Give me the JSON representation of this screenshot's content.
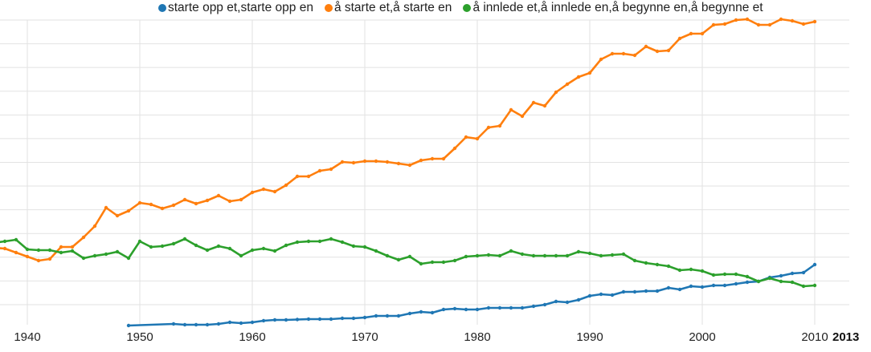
{
  "chart_data": {
    "type": "line",
    "title": "",
    "xlabel": "",
    "ylabel": "",
    "xlim": [
      1937.6,
      2012.5
    ],
    "ylim": [
      0,
      38.5
    ],
    "y_units": "relative frequency (unlabelled axis)",
    "grid": true,
    "legend_position": "top",
    "x_ticks": [
      "1940",
      "1950",
      "1960",
      "1970",
      "1980",
      "1990",
      "2000",
      "2010"
    ],
    "end_label": "2013",
    "series": [
      {
        "name": "starte opp et,starte opp en",
        "color": "#1f77b4",
        "x": [
          1949,
          1953,
          1954,
          1955,
          1956,
          1957,
          1958,
          1959,
          1960,
          1961,
          1962,
          1963,
          1964,
          1965,
          1966,
          1967,
          1968,
          1969,
          1970,
          1971,
          1972,
          1973,
          1974,
          1975,
          1976,
          1977,
          1978,
          1979,
          1980,
          1981,
          1982,
          1983,
          1984,
          1985,
          1986,
          1987,
          1988,
          1989,
          1990,
          1991,
          1992,
          1993,
          1994,
          1995,
          1996,
          1997,
          1998,
          1999,
          2000,
          2001,
          2002,
          2003,
          2004,
          2005,
          2006,
          2007,
          2008,
          2009,
          2010
        ],
        "values": [
          0.4,
          0.6,
          0.5,
          0.5,
          0.5,
          0.6,
          0.8,
          0.7,
          0.8,
          1.0,
          1.1,
          1.1,
          1.15,
          1.2,
          1.2,
          1.2,
          1.3,
          1.3,
          1.4,
          1.6,
          1.6,
          1.6,
          1.9,
          2.1,
          2.0,
          2.4,
          2.5,
          2.4,
          2.4,
          2.6,
          2.6,
          2.6,
          2.6,
          2.8,
          3.0,
          3.4,
          3.3,
          3.6,
          4.1,
          4.3,
          4.2,
          4.6,
          4.6,
          4.7,
          4.7,
          5.1,
          4.9,
          5.3,
          5.2,
          5.4,
          5.4,
          5.6,
          5.8,
          5.9,
          6.4,
          6.6,
          6.9,
          7.0,
          8.0
        ]
      },
      {
        "name": "å starte et,å starte en",
        "color": "#ff7f0e",
        "x": [
          1937,
          1938,
          1939,
          1940,
          1941,
          1942,
          1943,
          1944,
          1945,
          1946,
          1947,
          1948,
          1949,
          1950,
          1951,
          1952,
          1953,
          1954,
          1955,
          1956,
          1957,
          1958,
          1959,
          1960,
          1961,
          1962,
          1963,
          1964,
          1965,
          1966,
          1967,
          1968,
          1969,
          1970,
          1971,
          1972,
          1973,
          1974,
          1975,
          1976,
          1977,
          1978,
          1979,
          1980,
          1981,
          1982,
          1983,
          1984,
          1985,
          1986,
          1987,
          1988,
          1989,
          1990,
          1991,
          1992,
          1993,
          1994,
          1995,
          1996,
          1997,
          1998,
          1999,
          2000,
          2001,
          2002,
          2003,
          2004,
          2005,
          2006,
          2007,
          2008,
          2009,
          2010
        ],
        "values": [
          10.1,
          10.0,
          9.5,
          9.0,
          8.5,
          8.7,
          10.2,
          10.2,
          11.4,
          12.8,
          15.1,
          14.1,
          14.7,
          15.7,
          15.5,
          15.0,
          15.4,
          16.1,
          15.6,
          16.0,
          16.6,
          15.9,
          16.1,
          17.0,
          17.4,
          17.1,
          17.9,
          19.0,
          19.0,
          19.7,
          19.9,
          20.8,
          20.7,
          20.9,
          20.9,
          20.8,
          20.6,
          20.4,
          21.0,
          21.2,
          21.2,
          22.5,
          23.9,
          23.7,
          25.1,
          25.3,
          27.3,
          26.5,
          28.2,
          27.8,
          29.5,
          30.5,
          31.4,
          31.9,
          33.6,
          34.3,
          34.3,
          34.1,
          35.2,
          34.6,
          34.7,
          36.2,
          36.8,
          36.8,
          37.9,
          38.0,
          38.5,
          38.6,
          37.9,
          37.9,
          38.6,
          38.4,
          38.0,
          38.3
        ]
      },
      {
        "name": "å innlede et,å innlede en,å begynne en,å begynne et",
        "color": "#2ca02c",
        "x": [
          1937,
          1938,
          1939,
          1940,
          1941,
          1942,
          1943,
          1944,
          1945,
          1946,
          1947,
          1948,
          1949,
          1950,
          1951,
          1952,
          1953,
          1954,
          1955,
          1956,
          1957,
          1958,
          1959,
          1960,
          1961,
          1962,
          1963,
          1964,
          1965,
          1966,
          1967,
          1968,
          1969,
          1970,
          1971,
          1972,
          1973,
          1974,
          1975,
          1976,
          1977,
          1978,
          1979,
          1980,
          1981,
          1982,
          1983,
          1984,
          1985,
          1986,
          1987,
          1988,
          1989,
          1990,
          1991,
          1992,
          1993,
          1994,
          1995,
          1996,
          1997,
          1998,
          1999,
          2000,
          2001,
          2002,
          2003,
          2004,
          2005,
          2006,
          2007,
          2008,
          2009,
          2010
        ],
        "values": [
          10.7,
          10.9,
          11.1,
          9.9,
          9.8,
          9.8,
          9.5,
          9.7,
          8.8,
          9.1,
          9.3,
          9.6,
          8.8,
          10.9,
          10.2,
          10.3,
          10.6,
          11.2,
          10.4,
          9.8,
          10.3,
          10.0,
          9.1,
          9.8,
          10.0,
          9.7,
          10.4,
          10.8,
          10.9,
          10.9,
          11.2,
          10.8,
          10.3,
          10.2,
          9.7,
          9.1,
          8.6,
          9.0,
          8.1,
          8.3,
          8.3,
          8.5,
          9.0,
          9.1,
          9.2,
          9.1,
          9.7,
          9.3,
          9.1,
          9.1,
          9.1,
          9.1,
          9.6,
          9.4,
          9.1,
          9.2,
          9.3,
          8.5,
          8.2,
          8.0,
          7.8,
          7.3,
          7.4,
          7.2,
          6.7,
          6.8,
          6.8,
          6.5,
          5.9,
          6.3,
          5.9,
          5.8,
          5.3,
          5.4
        ]
      }
    ]
  }
}
